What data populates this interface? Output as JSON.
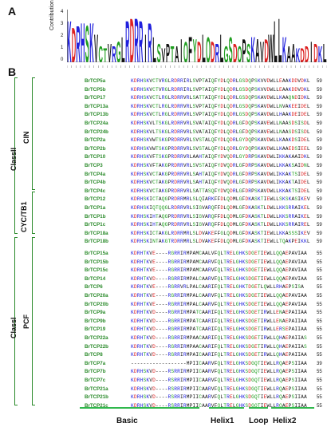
{
  "panels": {
    "a": "A",
    "b": "B"
  },
  "logo": {
    "ylabel": "Contribution",
    "yticks": [
      "4",
      "3",
      "2",
      "1",
      "0"
    ],
    "letters": "KDRHSKVCTVRGLRDRRIRLSVPTAIQFYDLQDRLGSDQPSKAVDWLLKAAKDDIDKL"
  },
  "groups": {
    "class2": "ClassII",
    "cin": "CIN",
    "cyc": "CYC/TB1",
    "class1": "ClassI",
    "pcf": "PCF"
  },
  "rows": [
    {
      "name": "BrTCP5a",
      "seq": "KDRHSKVCTVRGLRDRRIRLSVPTAIQFYDLQDRLGSDQPSKVVDWLLEAAKDDVDKL",
      "len": "59"
    },
    {
      "name": "BrTCP5b",
      "seq": "KDRHSKVCTVRGLRDRRIRLSVPTAIQFYDLQDRLGSDQPSKVVDWLLEAAKDDVDKL",
      "len": "59"
    },
    {
      "name": "BrTCP17",
      "seq": "KDRHSKVCTLRGLRDRRVRLSATTAIQFYDLQDRLGSDQPSKAVDWLLKAAQNDIDKL",
      "len": "59"
    },
    {
      "name": "BrTCP13a",
      "seq": "KDRHSKVCTLRGLRDRRVRLSVPTAIQFYDLQDRLGSDQPSKAVDWLLNVAKEEIDEL",
      "len": "59"
    },
    {
      "name": "BrTCP13b",
      "seq": "KDRHSKVCTLRGLRDRRVRLSVPTAIQFYDLQDRLGSDQPSKAVDWLLHAAKDEIDEL",
      "len": "59"
    },
    {
      "name": "BrTCP24a",
      "seq": "KDRHSKVLTSKGLRDRRVRLSVATAIQFYDLQDRLGFDQPSKAVEWLLNAASDSISDL",
      "len": "59"
    },
    {
      "name": "BrTCP24b",
      "seq": "KDRHSKVLTSKGLRDRRVRLSVATAIQFYDLQDRLGFDQPSKAVEWLLNAASDSISDL",
      "len": "59"
    },
    {
      "name": "BrTCP2a",
      "seq": "KDRHSKVWTSKGPRDRRVRLSVSTALQFYDLQDRLGYDQPSKAVDWLLKAAKDSIDEL",
      "len": "59"
    },
    {
      "name": "BrTCP2b",
      "seq": "KDRHSKVWTSKGPRDRRVRLSVSTALQFYDLQDRLGYDQPSKAVDWLLKAAEDSIEEL",
      "len": "59"
    },
    {
      "name": "BrTCP10",
      "seq": "KDRHSKVFTSKGPRDRRVRLAAHTAIQFYDVQDRLGYDRPSKAVDWLIKKAKAAIDKL",
      "len": "59"
    },
    {
      "name": "BrTCP3",
      "seq": "KDRHSKVFTAKGPRDRRVRLSVSTAIQFYDVQDRLGFDRPSKAVDWLLKKAKSAIDNL",
      "len": "59"
    },
    {
      "name": "BrTCP4a",
      "seq": "KDRHSKVCTAKGPRDRRVRLSAHTAIQFYDVQDRLGFDRPSKAVDWLIKKAKTSIDEL",
      "len": "59"
    },
    {
      "name": "BrTCP4b",
      "seq": "KDRHSKVCTAKGPRDRRVRLSAHTAIQFYDVQDRLGFDRPSKAVDWLIKKAKTAIDEL",
      "len": "59"
    },
    {
      "name": "BrTCP4c",
      "seq": "KDRHSKVCTAKGPRDRRVRLSATTASQFYDVQDRLGFDRPSKAVDWLLKKAKTSIDEL",
      "len": "59"
    },
    {
      "name": "BrTCP12",
      "seq": "KDRHSKICTAQGPRDRRMRLSLQIARKFFDLQDMLGFDKASKTIEWLLSKSKASIKEV",
      "len": "59"
    },
    {
      "name": "BrTCP1a",
      "seq": "KDRHSKIQTQQGLRDRRVRLSIGVARQFFDLQDMLGFDKASKTLDWLLKKSRRAIKEL",
      "len": "59"
    },
    {
      "name": "BrTCP1b",
      "seq": "KDRHSKIHTAQGPRDRRVRLSIGVARQFFDLQDMLGFDKASKTLDWLLKKSRRAIKEL",
      "len": "59"
    },
    {
      "name": "BrTCP1c",
      "seq": "KDRHSKIHTAQGPRDRRVRLSIGVARQFFDLQDMLGFDKASKTLDWLLKKSRRAIREL",
      "len": "59"
    },
    {
      "name": "BrTCP18a",
      "seq": "KDRHSKICTAKGLRDRRMRLSLDVAKEFFGLQDMLGFDKASKTIEWLLKKASSSIKEV",
      "len": "59"
    },
    {
      "name": "BrTCP18b",
      "seq": "KDRHSKINTAKGTRDRRMRLSLDVAKEFFDLQDMLGFDKASKTIEWLLTQAKPEIKKL",
      "len": "59"
    },
    {
      "name": "BrTCP15a",
      "seq": "KDRHTKVE----RGRRIRMPAMCAALVFQLTRELGHKSDGETIEWLLQQAEPAVIAA",
      "len": "55"
    },
    {
      "name": "BrTCP15b",
      "seq": "KDRHTKVE----RGRRIRMPAMCAARVFQLTRELGHKSDGETIEWLLQQAEPAVIAA",
      "len": "55"
    },
    {
      "name": "BrTCP15c",
      "seq": "KDRHTKVE----RGRRIRMPAMCAARVFQLTRELGHKSDGETIEWLLQQAEPAVIAA",
      "len": "55"
    },
    {
      "name": "BrTCP14",
      "seq": "KDRHTKVD----RGRRIRMPALCAARVFQLTRELGHKSDGETIEWLLQQAEPAVIAA",
      "len": "55"
    },
    {
      "name": "BrTCP6",
      "seq": "KDRHTKVE----RGRRVRLPALCAARIFQLTRELGHKTDGETLQWLLRHAEPSISA",
      "len": "55"
    },
    {
      "name": "BrTCP20a",
      "seq": "KDRHTKVE----RGRRIRMPALCAARVFQLTRELGHKSDGETIEWLLQQAEPAVIAA",
      "len": "55"
    },
    {
      "name": "BrTCP20b",
      "seq": "KDRHTKVE----RGRRIRMPALCAARVFQLTRELGHKSDGETIEWLLQQAEPAVIAA",
      "len": "55"
    },
    {
      "name": "BrTCP9a",
      "seq": "KDRHTKVD----RGRRIRMPATCAARIFQLTRELGHKSDGETIRWLLENAEPAIIAA",
      "len": "55"
    },
    {
      "name": "BrTCP9b",
      "seq": "KDRHTKVD----RGRRIRMPATCAARIFQLTRELGHKSDGETIRWLLENAEPAIIAA",
      "len": "55"
    },
    {
      "name": "BrTCP19",
      "seq": "KDRHTKVD----RGRRIRMPATCAARIFQLTRELGHKSDGETIRWLLERSEPAIIAA",
      "len": "55"
    },
    {
      "name": "BrTCP22a",
      "seq": "KDRHTKVD----RGRRIRMPAACAARIFQLTRELGHKSDGETIRWLLQHAEPAIIAS",
      "len": "55"
    },
    {
      "name": "BrTCP22b",
      "seq": "KDRHTKVD----RGRRIRMPAACAARIFQLTRELGHKSDGETIRWLLQHAEPAIIAS",
      "len": "55"
    },
    {
      "name": "BrTCP8",
      "seq": "KDRHTKVD----RGRRIRMPAICAARIFQLTRELGHKSDGETIRWLLQHAEPAIIAA",
      "len": "55"
    },
    {
      "name": "BrTCP7a",
      "seq": "------------------MPIICAARVFQLTRELGHKSDGQTIEWLLRQAEPSIIAA",
      "len": "39"
    },
    {
      "name": "BrTCP7b",
      "seq": "KDRHSKVD----RSRRIRMPIICAARVFQLTRELGHKSDGQTIEWLLRQAEPSIIAA",
      "len": "55"
    },
    {
      "name": "BrTCP7c",
      "seq": "KDRHSKVD----RSRRIRMPIICAARVFQLTRELGHKSDGQTIEWLLRQAEPSIIAA",
      "len": "55"
    },
    {
      "name": "BrTCP21a",
      "seq": "KDRHSKVD----RSRRIRMPIICAARVFQLTRELGHKSDGQTIEWLLRQAEPSIIAA",
      "len": "55"
    },
    {
      "name": "BrTCP21b",
      "seq": "KDRHSKVD----RSRRIRMPIICAARVFQLTRELGHKSDGQTIEWLLRQAEPSIIAA",
      "len": "55"
    },
    {
      "name": "BrTCP21c",
      "seq": "KDRHSKVD----RSRRIRMPIICAARVFQLTRELGHKSDGQTIEWLLRQAEPSIIAA",
      "len": "55"
    }
  ],
  "regions": [
    {
      "label": "Basic"
    },
    {
      "label": "Helix1"
    },
    {
      "label": "Loop"
    },
    {
      "label": "Helix2"
    }
  ]
}
